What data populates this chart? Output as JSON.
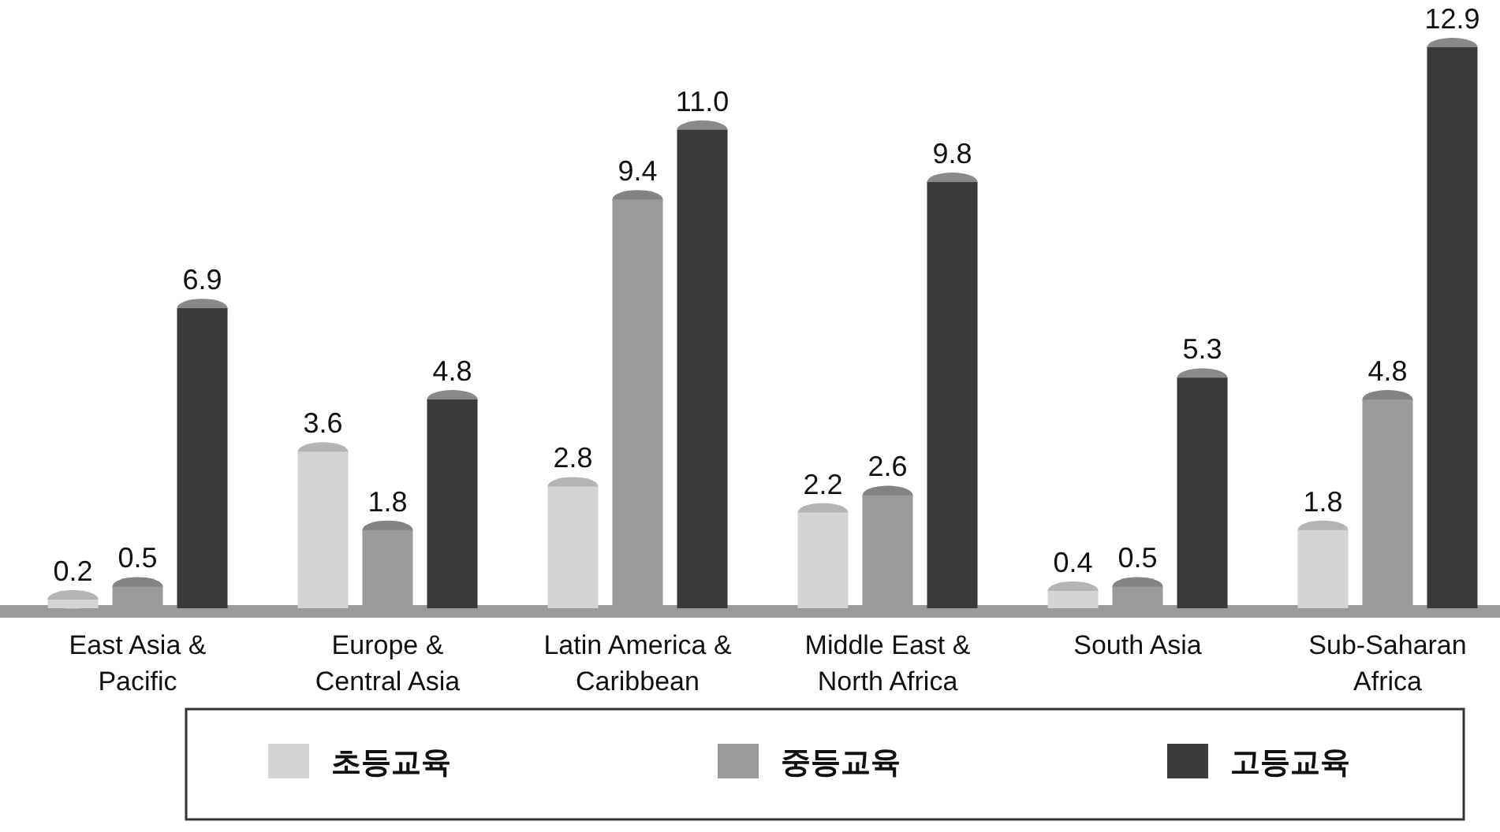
{
  "chart_data": {
    "type": "bar",
    "categories": [
      "East Asia & Pacific",
      "Europe & Central Asia",
      "Latin America & Caribbean",
      "Middle East & North Africa",
      "South Asia",
      "Sub-Saharan Africa"
    ],
    "series": [
      {
        "name": "초등교육",
        "color": "#d4d4d4",
        "values": [
          0.2,
          3.6,
          2.8,
          2.2,
          0.4,
          1.8
        ],
        "value_labels": [
          "0.2",
          "3.6",
          "2.8",
          "2.2",
          "0.4",
          "1.8"
        ]
      },
      {
        "name": "중등교육",
        "color": "#9a9a9a",
        "values": [
          0.5,
          1.8,
          9.4,
          2.6,
          0.5,
          4.8
        ],
        "value_labels": [
          "0.5",
          "1.8",
          "9.4",
          "2.6",
          "0.5",
          "4.8"
        ]
      },
      {
        "name": "고등교육",
        "color": "#3a3a3a",
        "values": [
          6.9,
          4.8,
          11.0,
          9.8,
          5.3,
          12.9
        ],
        "value_labels": [
          "6.9",
          "4.8",
          "11.0",
          "9.8",
          "5.3",
          "12.9"
        ]
      }
    ],
    "legend": "bottom",
    "grid": false
  }
}
